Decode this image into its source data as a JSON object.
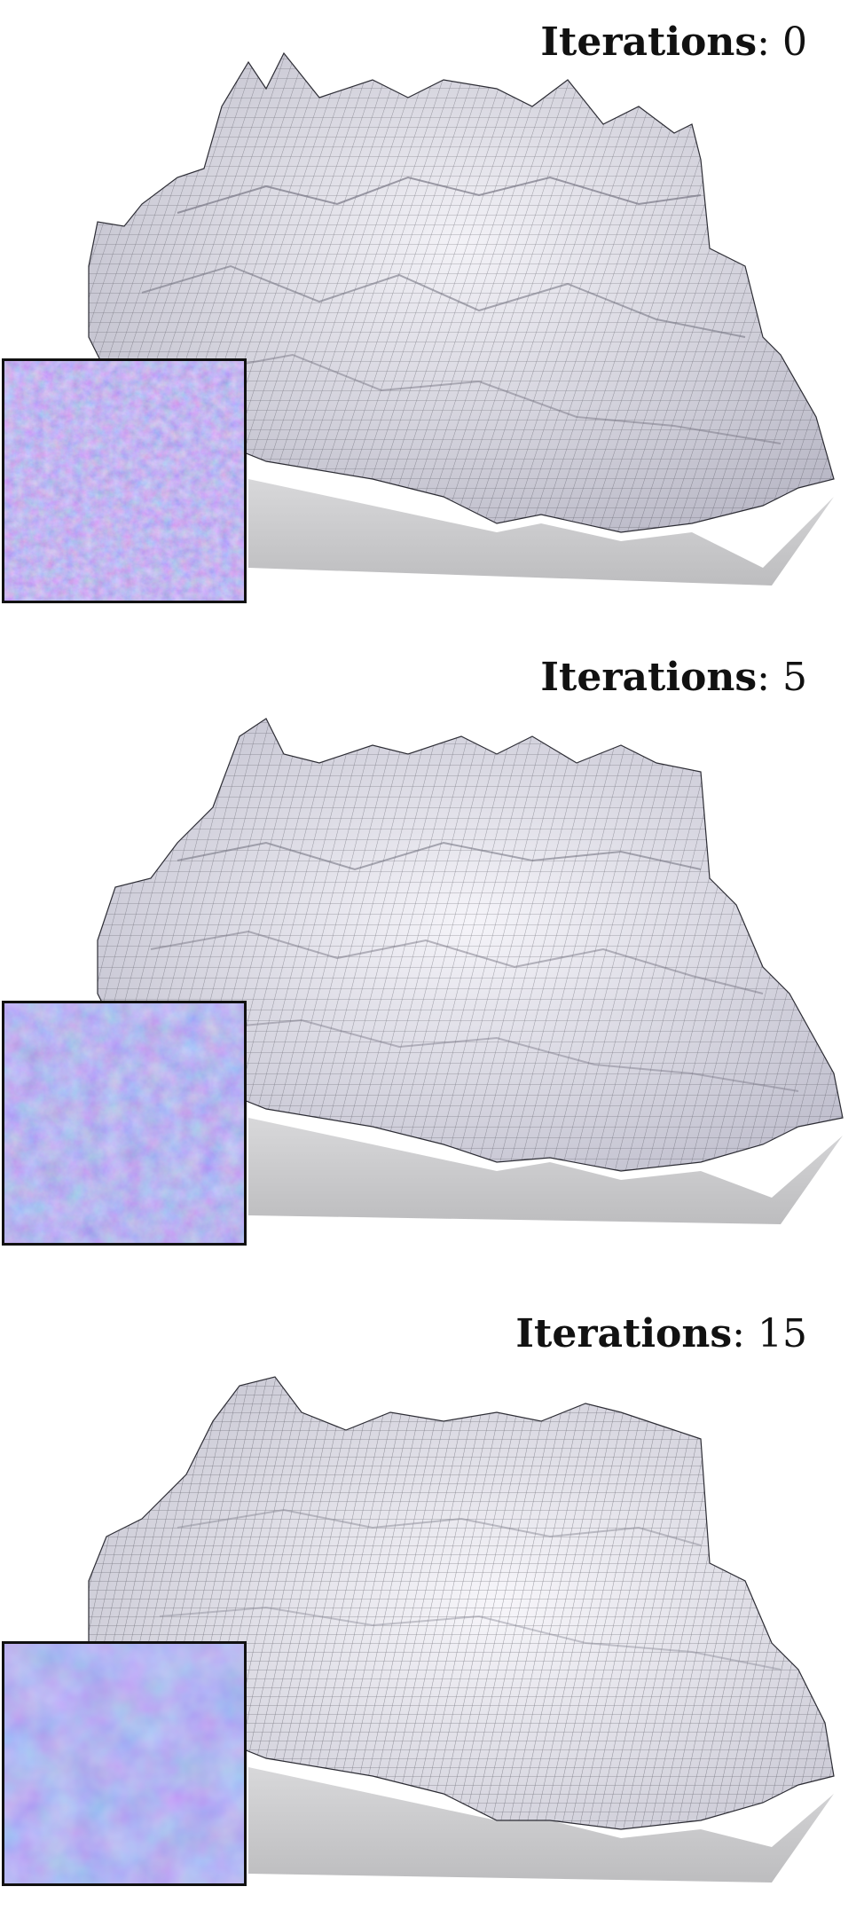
{
  "panels": [
    {
      "label_key": "Iterations",
      "label_sep": ":",
      "label_value": "0",
      "roughness": "high"
    },
    {
      "label_key": "Iterations",
      "label_sep": ":",
      "label_value": "5",
      "roughness": "medium"
    },
    {
      "label_key": "Iterations",
      "label_sep": ":",
      "label_value": "15",
      "roughness": "low"
    }
  ],
  "colors": {
    "mesh_fill": "#eceaf2",
    "mesh_line": "#3a3a44",
    "base_side": "#c9c9cb",
    "normal_map_base": "#7b7ff2",
    "normal_map_pink": "#c777e8",
    "normal_map_cyan": "#6fb4f0"
  }
}
